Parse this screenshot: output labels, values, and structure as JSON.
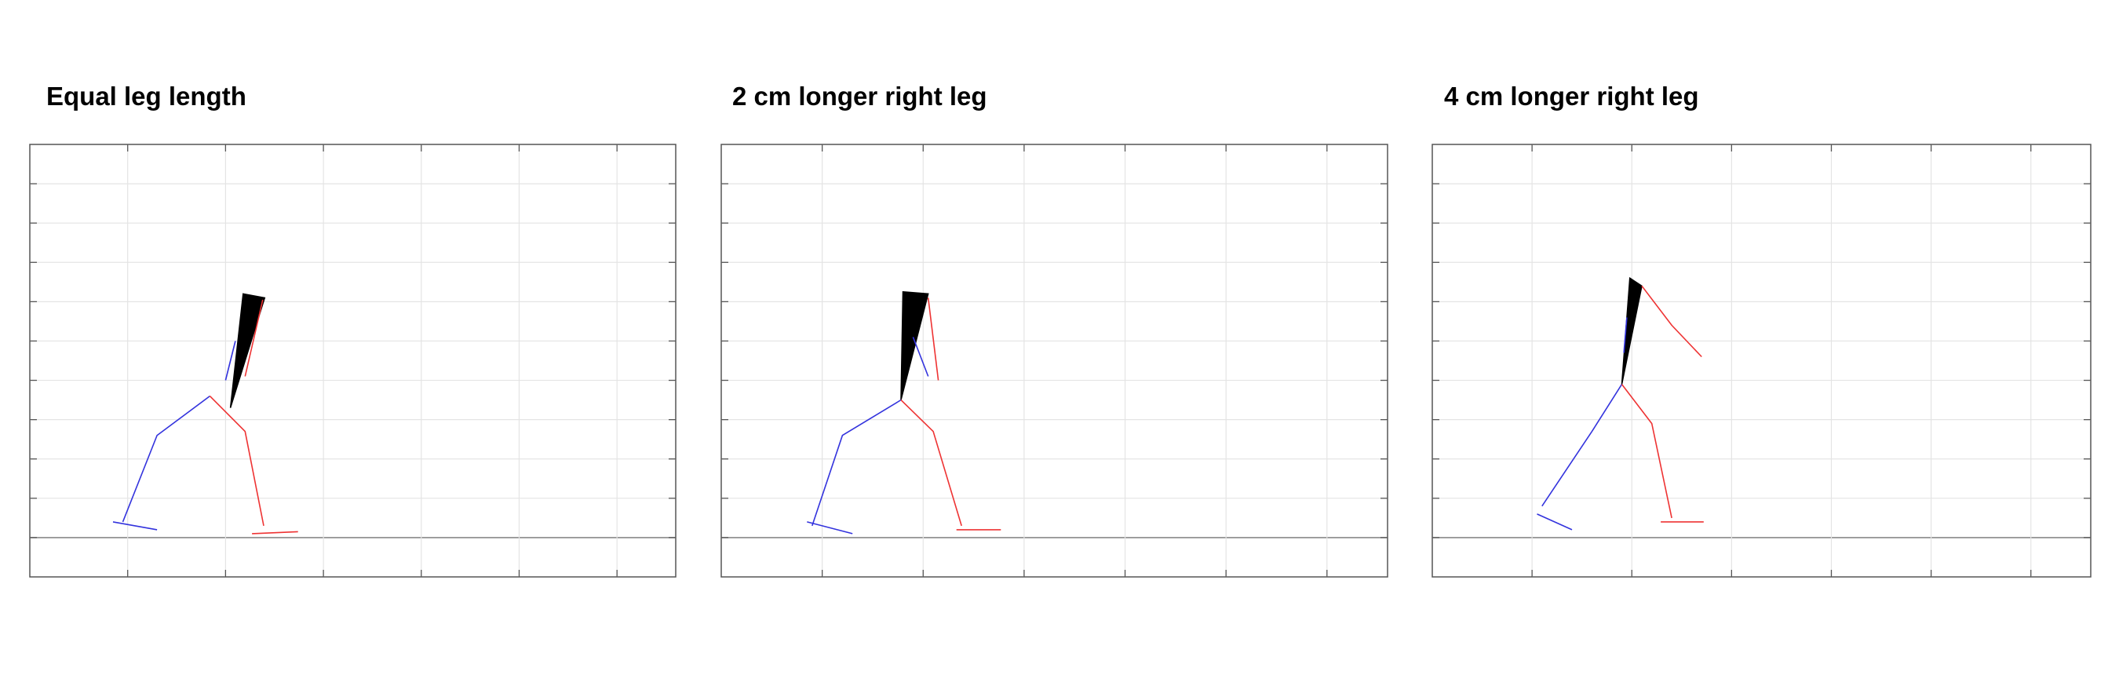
{
  "colors": {
    "left_leg": "#3333dd",
    "right_leg": "#ee3333",
    "trunk": "#000000",
    "grid": "#e4e4e4",
    "frame": "#555555"
  },
  "panels": [
    {
      "title": "Equal leg length",
      "figure": {
        "trunk": [
          [
            2.18,
            7.2
          ],
          [
            2.4,
            7.1
          ],
          [
            2.05,
            4.3
          ]
        ],
        "left_arm": [
          [
            2.1,
            6.0
          ],
          [
            2.0,
            5.0
          ]
        ],
        "right_arm": [
          [
            2.38,
            7.05
          ],
          [
            2.2,
            5.1
          ]
        ],
        "left_leg": [
          [
            1.84,
            4.6
          ],
          [
            1.3,
            3.6
          ],
          [
            0.95,
            1.4
          ]
        ],
        "left_foot": [
          [
            0.85,
            1.4
          ],
          [
            1.3,
            1.2
          ]
        ],
        "right_leg": [
          [
            1.84,
            4.6
          ],
          [
            2.2,
            3.7
          ],
          [
            2.39,
            1.3
          ]
        ],
        "right_foot": [
          [
            2.27,
            1.1
          ],
          [
            2.74,
            1.15
          ]
        ]
      }
    },
    {
      "title": "2 cm longer right leg",
      "figure": {
        "trunk": [
          [
            1.8,
            7.25
          ],
          [
            2.05,
            7.2
          ],
          [
            1.78,
            4.5
          ]
        ],
        "left_arm": [
          [
            1.9,
            6.1
          ],
          [
            2.05,
            5.1
          ]
        ],
        "right_arm": [
          [
            2.05,
            7.1
          ],
          [
            2.15,
            5.0
          ]
        ],
        "left_leg": [
          [
            1.78,
            4.5
          ],
          [
            1.2,
            3.6
          ],
          [
            0.9,
            1.3
          ]
        ],
        "left_foot": [
          [
            0.85,
            1.4
          ],
          [
            1.3,
            1.1
          ]
        ],
        "right_leg": [
          [
            1.78,
            4.5
          ],
          [
            2.1,
            3.7
          ],
          [
            2.38,
            1.3
          ]
        ],
        "right_foot": [
          [
            2.33,
            1.2
          ],
          [
            2.77,
            1.2
          ]
        ]
      }
    },
    {
      "title": "4 cm longer right leg",
      "figure": {
        "trunk": [
          [
            1.98,
            7.6
          ],
          [
            2.1,
            7.4
          ],
          [
            1.9,
            4.9
          ]
        ],
        "left_arm": [
          [
            1.95,
            6.6
          ],
          [
            1.92,
            5.7
          ]
        ],
        "right_arm": [
          [
            2.1,
            7.4
          ],
          [
            2.4,
            6.4
          ],
          [
            2.7,
            5.6
          ]
        ],
        "left_leg": [
          [
            1.9,
            4.9
          ],
          [
            1.6,
            3.7
          ],
          [
            1.1,
            1.8
          ]
        ],
        "left_foot": [
          [
            1.05,
            1.6
          ],
          [
            1.4,
            1.2
          ]
        ],
        "right_leg": [
          [
            1.9,
            4.9
          ],
          [
            2.2,
            3.9
          ],
          [
            2.4,
            1.5
          ]
        ],
        "right_foot": [
          [
            2.29,
            1.4
          ],
          [
            2.72,
            1.4
          ]
        ]
      }
    }
  ]
}
